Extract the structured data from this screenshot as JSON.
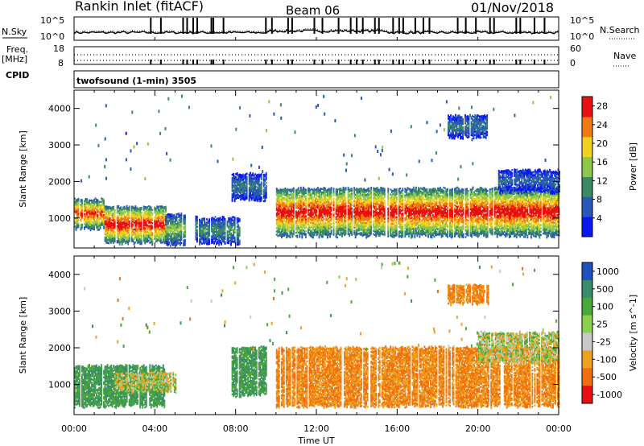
{
  "header": {
    "station": "Rankin Inlet (fitACF)",
    "beam": "Beam 06",
    "date": "01/Nov/2018"
  },
  "strip": {
    "nsky_label": "N.Sky",
    "nsearch_label": "N.Search",
    "freq_label": "Freq.",
    "freq_unit": "[MHz]",
    "nave_label": "Nave",
    "cpid_label": "CPID",
    "cpid_text": "twofsound (1-min) 3505",
    "noise_left_ticks": [
      "10^5",
      "10^0"
    ],
    "noise_right_ticks": [
      "10^5",
      "10^0"
    ],
    "freq_left_ticks": [
      "18",
      "8"
    ],
    "freq_right_ticks": [
      "60",
      "0"
    ]
  },
  "chart_data": [
    {
      "type": "heatmap",
      "title": "",
      "xlabel": "Time UT",
      "ylabel": "Slant Range [km]",
      "xlim": [
        0,
        24
      ],
      "ylim": [
        180,
        4500
      ],
      "x_ticks": [
        "00:00",
        "04:00",
        "08:00",
        "12:00",
        "16:00",
        "20:00",
        "00:00"
      ],
      "y_ticks": [
        1000,
        2000,
        3000,
        4000
      ],
      "colorbar": {
        "label": "Power [dB]",
        "ticks": [
          4,
          8,
          12,
          16,
          20,
          24,
          28
        ],
        "range": [
          0,
          30
        ],
        "colors": [
          "#0a18f0",
          "#2a58b8",
          "#3a8a68",
          "#8cc84a",
          "#f0d020",
          "#f07a10",
          "#e81010"
        ]
      },
      "echo_bands": [
        {
          "t_start": 0.0,
          "t_end": 1.5,
          "range_low": 700,
          "range_high": 1500,
          "power_peak": 28
        },
        {
          "t_start": 1.5,
          "t_end": 4.5,
          "range_low": 300,
          "range_high": 1300,
          "power_peak": 30
        },
        {
          "t_start": 4.5,
          "t_end": 5.5,
          "range_low": 250,
          "range_high": 1100,
          "power_peak": 16
        },
        {
          "t_start": 6.0,
          "t_end": 8.2,
          "range_low": 300,
          "range_high": 1000,
          "power_peak": 12
        },
        {
          "t_start": 7.8,
          "t_end": 9.5,
          "range_low": 1500,
          "range_high": 2200,
          "power_peak": 10
        },
        {
          "t_start": 10.0,
          "t_end": 24.0,
          "range_low": 500,
          "range_high": 1800,
          "power_peak": 30
        },
        {
          "t_start": 18.5,
          "t_end": 20.5,
          "range_low": 3200,
          "range_high": 3800,
          "power_peak": 10
        },
        {
          "t_start": 21.0,
          "t_end": 24.0,
          "range_low": 1700,
          "range_high": 2300,
          "power_peak": 8
        }
      ]
    },
    {
      "type": "heatmap",
      "title": "",
      "xlabel": "Time UT",
      "ylabel": "Slant Range [km]",
      "xlim": [
        0,
        24
      ],
      "ylim": [
        180,
        4500
      ],
      "x_ticks": [
        "00:00",
        "04:00",
        "08:00",
        "12:00",
        "16:00",
        "20:00",
        "00:00"
      ],
      "y_ticks": [
        1000,
        2000,
        3000,
        4000
      ],
      "colorbar": {
        "label": "Velocity [m s^-1]",
        "ticks": [
          "1000",
          "500",
          "100",
          "25",
          "-25",
          "-100",
          "-500",
          "-1000"
        ],
        "colors": [
          "#2050c0",
          "#3a8c6a",
          "#4aa83a",
          "#8cd050",
          "#c8c8c8",
          "#f0a020",
          "#f07010",
          "#e81010"
        ]
      },
      "echo_bands": [
        {
          "t_start": 0.0,
          "t_end": 4.5,
          "range_low": 400,
          "range_high": 1500,
          "velocity": 300
        },
        {
          "t_start": 2.0,
          "t_end": 5.0,
          "range_low": 800,
          "range_high": 1300,
          "velocity": 0
        },
        {
          "t_start": 7.8,
          "t_end": 9.5,
          "range_low": 700,
          "range_high": 2000,
          "velocity": 300
        },
        {
          "t_start": 10.0,
          "t_end": 24.0,
          "range_low": 400,
          "range_high": 2000,
          "velocity": -300
        },
        {
          "t_start": 18.5,
          "t_end": 20.5,
          "range_low": 3200,
          "range_high": 3700,
          "velocity": -300
        },
        {
          "t_start": 20.0,
          "t_end": 24.0,
          "range_low": 1600,
          "range_high": 2400,
          "velocity": 0
        }
      ]
    }
  ]
}
